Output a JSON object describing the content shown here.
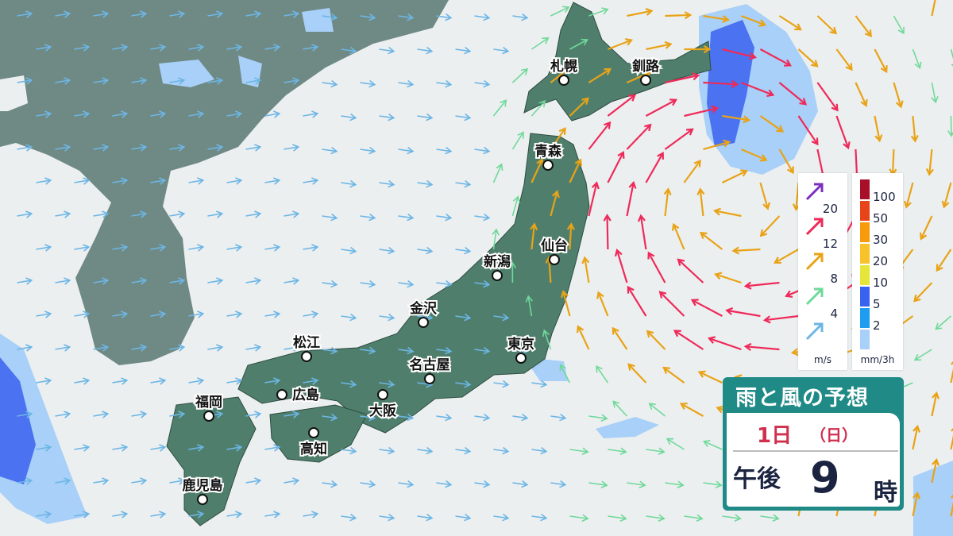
{
  "title": "雨と風の予想",
  "date": {
    "day": "1日",
    "weekday": "（日）"
  },
  "time": {
    "period": "午後",
    "hour": "9",
    "suffix": "時"
  },
  "cities": [
    {
      "name": "札幌"
    },
    {
      "name": "釧路"
    },
    {
      "name": "青森"
    },
    {
      "name": "仙台"
    },
    {
      "name": "新潟"
    },
    {
      "name": "金沢"
    },
    {
      "name": "東京"
    },
    {
      "name": "名古屋"
    },
    {
      "name": "松江"
    },
    {
      "name": "広島"
    },
    {
      "name": "大阪"
    },
    {
      "name": "福岡"
    },
    {
      "name": "高知"
    },
    {
      "name": "鹿児島"
    }
  ],
  "wind_legend": {
    "unit": "m/s",
    "levels": [
      {
        "value": "20",
        "color": "#7b2fbf"
      },
      {
        "value": "12",
        "color": "#ee2a5a"
      },
      {
        "value": "8",
        "color": "#e8a317"
      },
      {
        "value": "4",
        "color": "#6fd99a"
      },
      {
        "value": "",
        "color": "#6cb6e6"
      }
    ]
  },
  "rain_legend": {
    "unit": "mm/3h",
    "levels": [
      {
        "value": "100",
        "color": "#a8102a"
      },
      {
        "value": "50",
        "color": "#e8441a"
      },
      {
        "value": "30",
        "color": "#f79a0c"
      },
      {
        "value": "20",
        "color": "#f8c22a"
      },
      {
        "value": "10",
        "color": "#e6e63a"
      },
      {
        "value": "5",
        "color": "#3a62f0"
      },
      {
        "value": "2",
        "color": "#1e9cf0"
      },
      {
        "value": "",
        "color": "#a8d0f8"
      }
    ]
  },
  "colors": {
    "land_japan": "#4f7f6c",
    "land_other": "#6f8a84",
    "sea": "#eceff0",
    "panel": "#1f8a86"
  }
}
